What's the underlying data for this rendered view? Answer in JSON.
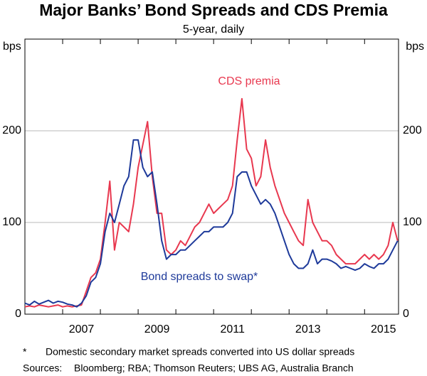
{
  "chart_data": {
    "type": "line",
    "title": "Major Banks’ Bond Spreads and CDS Premia",
    "subtitle": "5-year, daily",
    "y_label": "bps",
    "y2_label": "bps",
    "x": [
      2006,
      2006.125,
      2006.25,
      2006.375,
      2006.5,
      2006.625,
      2006.75,
      2006.875,
      2007,
      2007.125,
      2007.25,
      2007.375,
      2007.5,
      2007.625,
      2007.75,
      2007.875,
      2008,
      2008.125,
      2008.25,
      2008.375,
      2008.5,
      2008.625,
      2008.75,
      2008.875,
      2009,
      2009.125,
      2009.25,
      2009.375,
      2009.5,
      2009.625,
      2009.75,
      2009.875,
      2010,
      2010.125,
      2010.25,
      2010.375,
      2010.5,
      2010.625,
      2010.75,
      2010.875,
      2011,
      2011.125,
      2011.25,
      2011.375,
      2011.5,
      2011.625,
      2011.75,
      2011.875,
      2012,
      2012.125,
      2012.25,
      2012.375,
      2012.5,
      2012.625,
      2012.75,
      2012.875,
      2013,
      2013.125,
      2013.25,
      2013.375,
      2013.5,
      2013.625,
      2013.75,
      2013.875,
      2014,
      2014.125,
      2014.25,
      2014.375,
      2014.5,
      2014.625,
      2014.75,
      2014.875,
      2015,
      2015.125,
      2015.25,
      2015.375,
      2015.5,
      2015.625,
      2015.75,
      2015.875
    ],
    "series": [
      {
        "name": "CDS premia",
        "color": "#e8384f",
        "values": [
          8,
          9,
          8,
          10,
          9,
          8,
          9,
          10,
          8,
          9,
          8,
          9,
          10,
          25,
          40,
          45,
          60,
          100,
          145,
          70,
          100,
          95,
          90,
          120,
          160,
          185,
          210,
          150,
          110,
          110,
          70,
          65,
          70,
          80,
          75,
          85,
          95,
          100,
          110,
          120,
          110,
          115,
          120,
          125,
          140,
          190,
          235,
          180,
          170,
          140,
          150,
          190,
          160,
          140,
          125,
          110,
          100,
          90,
          80,
          75,
          125,
          100,
          90,
          80,
          80,
          75,
          65,
          60,
          55,
          55,
          55,
          60,
          65,
          60,
          65,
          60,
          65,
          75,
          100,
          80
        ]
      },
      {
        "name": "Bond spreads to swap*",
        "color": "#1e3a9a",
        "values": [
          12,
          10,
          14,
          11,
          13,
          15,
          12,
          14,
          13,
          11,
          10,
          8,
          12,
          20,
          35,
          40,
          55,
          90,
          110,
          100,
          120,
          140,
          150,
          190,
          190,
          160,
          150,
          155,
          120,
          80,
          60,
          65,
          65,
          70,
          70,
          75,
          80,
          85,
          90,
          90,
          95,
          95,
          95,
          100,
          110,
          150,
          155,
          155,
          140,
          130,
          120,
          125,
          120,
          110,
          95,
          80,
          65,
          55,
          50,
          50,
          55,
          70,
          55,
          60,
          60,
          58,
          55,
          50,
          52,
          50,
          48,
          50,
          55,
          52,
          50,
          55,
          55,
          60,
          70,
          80
        ]
      }
    ],
    "xlim": [
      2006,
      2015.9
    ],
    "xticks": [
      {
        "value": 2007.5,
        "label": "2007"
      },
      {
        "value": 2009.5,
        "label": "2009"
      },
      {
        "value": 2011.5,
        "label": "2011"
      },
      {
        "value": 2013.5,
        "label": "2013"
      },
      {
        "value": 2015.5,
        "label": "2015"
      }
    ],
    "xminor_ticks": [
      2007,
      2008,
      2009,
      2010,
      2011,
      2012,
      2013,
      2014,
      2015
    ],
    "ylim": [
      0,
      300
    ],
    "yticks": [
      0,
      100,
      200
    ],
    "grid": true,
    "footnote": {
      "marker": "*",
      "text": "Domestic secondary market spreads converted into US dollar spreads"
    },
    "sources": {
      "label": "Sources:",
      "text": "Bloomberg; RBA; Thomson Reuters; UBS AG, Australia Branch"
    }
  }
}
